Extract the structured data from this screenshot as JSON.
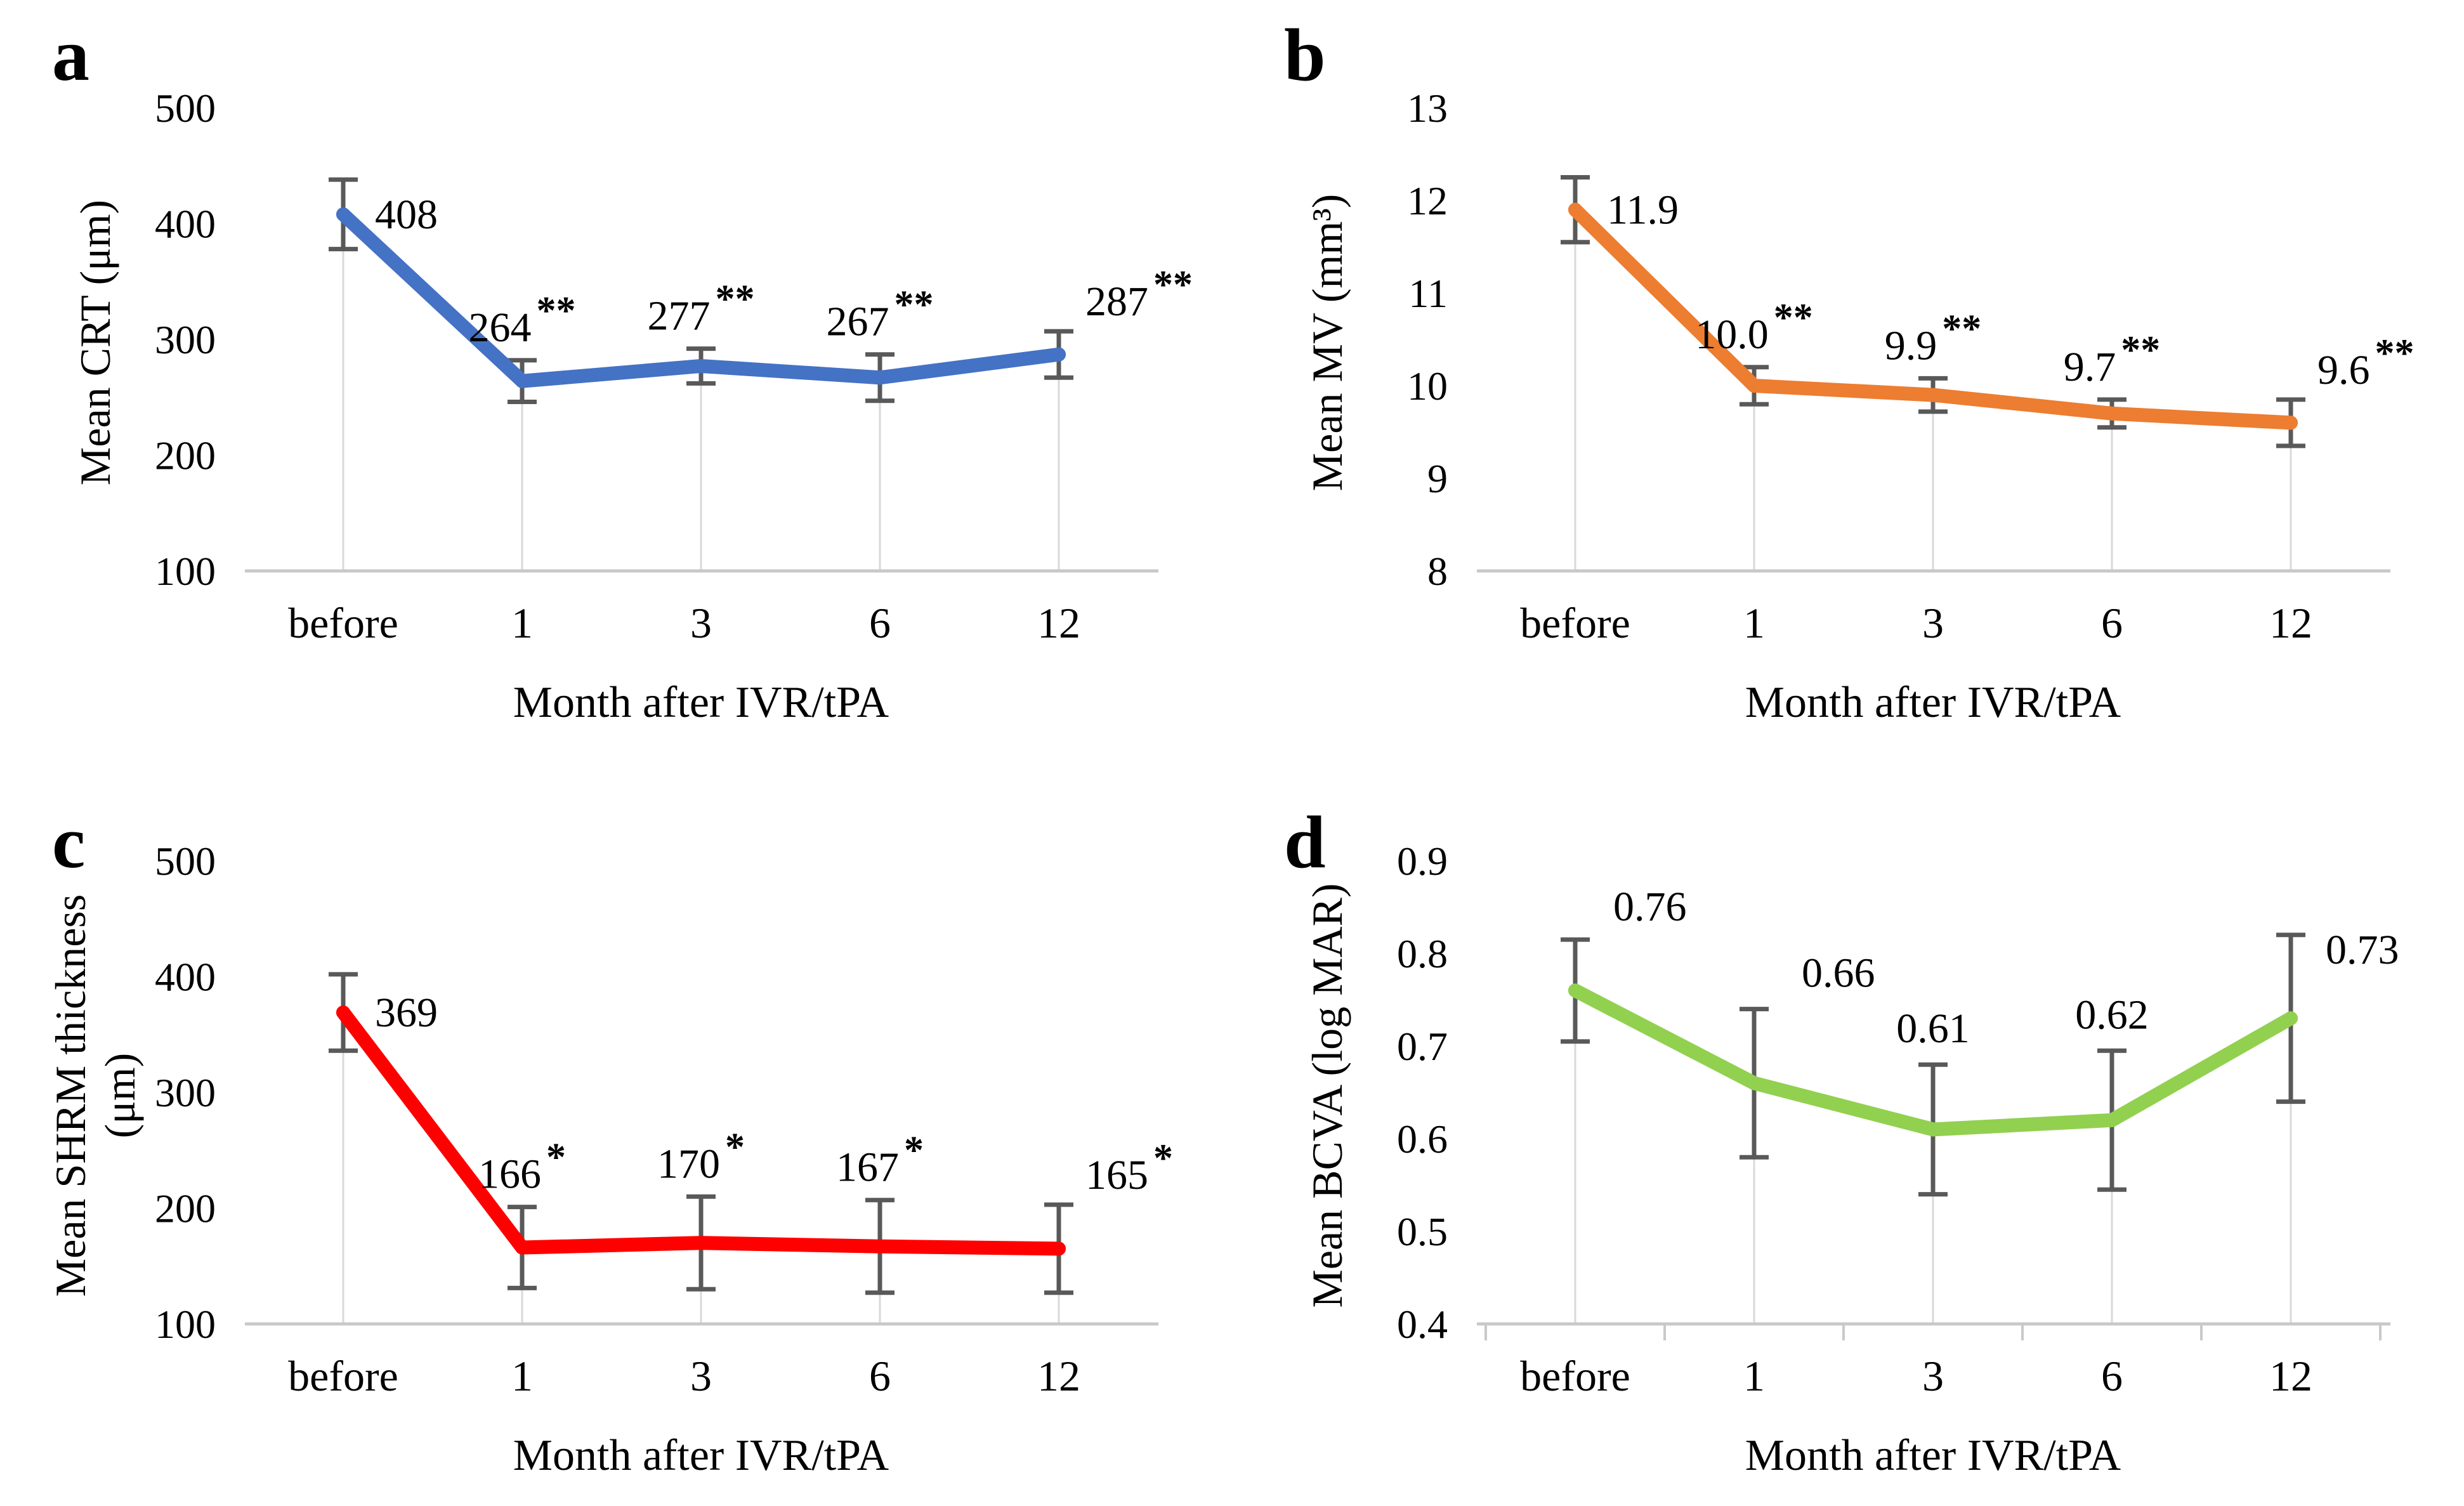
{
  "style": {
    "error_bar_color": "#595959",
    "axis_color": "#c9c9c9",
    "drop_line_color": "#d9d9d9",
    "text_color": "#000000"
  },
  "chart_data": [
    {
      "id": "a",
      "type": "line",
      "letter": "a",
      "ylabel": "Mean CRT (μm)",
      "xlabel": "Month after IVR/tPA",
      "categories": [
        "before",
        "1",
        "3",
        "6",
        "12"
      ],
      "values": [
        408,
        264,
        277,
        267,
        287
      ],
      "errors": [
        30,
        18,
        15,
        20,
        20
      ],
      "point_labels": [
        "408",
        "264",
        "277",
        "267",
        "287"
      ],
      "significance": [
        "",
        "**",
        "**",
        "**",
        "**"
      ],
      "y_ticks": [
        "500",
        "400",
        "300",
        "200",
        "100"
      ],
      "ylim": [
        100,
        500
      ],
      "line_color": "#4472C4",
      "x_boundary_ticks": false,
      "legend": "none",
      "grid": "off"
    },
    {
      "id": "b",
      "type": "line",
      "letter": "b",
      "ylabel": "Mean MV (mm³)",
      "xlabel": "Month after IVR/tPA",
      "categories": [
        "before",
        "1",
        "3",
        "6",
        "12"
      ],
      "values": [
        11.9,
        10.0,
        9.9,
        9.7,
        9.6
      ],
      "errors": [
        0.35,
        0.2,
        0.18,
        0.15,
        0.25
      ],
      "point_labels": [
        "11.9",
        "10.0",
        "9.9",
        "9.7",
        "9.6"
      ],
      "significance": [
        "",
        "**",
        "**",
        "**",
        "**"
      ],
      "y_ticks": [
        "13",
        "12",
        "11",
        "10",
        "9",
        "8"
      ],
      "ylim": [
        8,
        13
      ],
      "line_color": "#ED7D31",
      "x_boundary_ticks": false,
      "legend": "none",
      "grid": "off"
    },
    {
      "id": "c",
      "type": "line",
      "letter": "c",
      "ylabel": "Mean SHRM thickness\n(μm)",
      "xlabel": "Month after IVR/tPA",
      "categories": [
        "before",
        "1",
        "3",
        "6",
        "12"
      ],
      "values": [
        369,
        166,
        170,
        167,
        165
      ],
      "errors": [
        33,
        35,
        40,
        40,
        38
      ],
      "point_labels": [
        "369",
        "166",
        "170",
        "167",
        "165"
      ],
      "significance": [
        "",
        "*",
        "*",
        "*",
        "*"
      ],
      "y_ticks": [
        "500",
        "400",
        "300",
        "200",
        "100"
      ],
      "ylim": [
        100,
        500
      ],
      "line_color": "#FF0000",
      "x_boundary_ticks": false,
      "legend": "none",
      "grid": "off"
    },
    {
      "id": "d",
      "type": "line",
      "letter": "d",
      "ylabel": "Mean BCVA (log MAR)",
      "xlabel": "Month after IVR/tPA",
      "categories": [
        "before",
        "1",
        "3",
        "6",
        "12"
      ],
      "values": [
        0.76,
        0.66,
        0.61,
        0.62,
        0.73
      ],
      "errors": [
        0.055,
        0.08,
        0.07,
        0.075,
        0.09
      ],
      "point_labels": [
        "0.76",
        "0.66",
        "0.61",
        "0.62",
        "0.73"
      ],
      "significance": [
        "",
        "",
        "",
        "",
        ""
      ],
      "y_ticks": [
        "0.9",
        "0.8",
        "0.7",
        "0.6",
        "0.5",
        "0.4"
      ],
      "ylim": [
        0.4,
        0.9
      ],
      "line_color": "#92D050",
      "x_boundary_ticks": true,
      "legend": "none",
      "grid": "off"
    }
  ]
}
